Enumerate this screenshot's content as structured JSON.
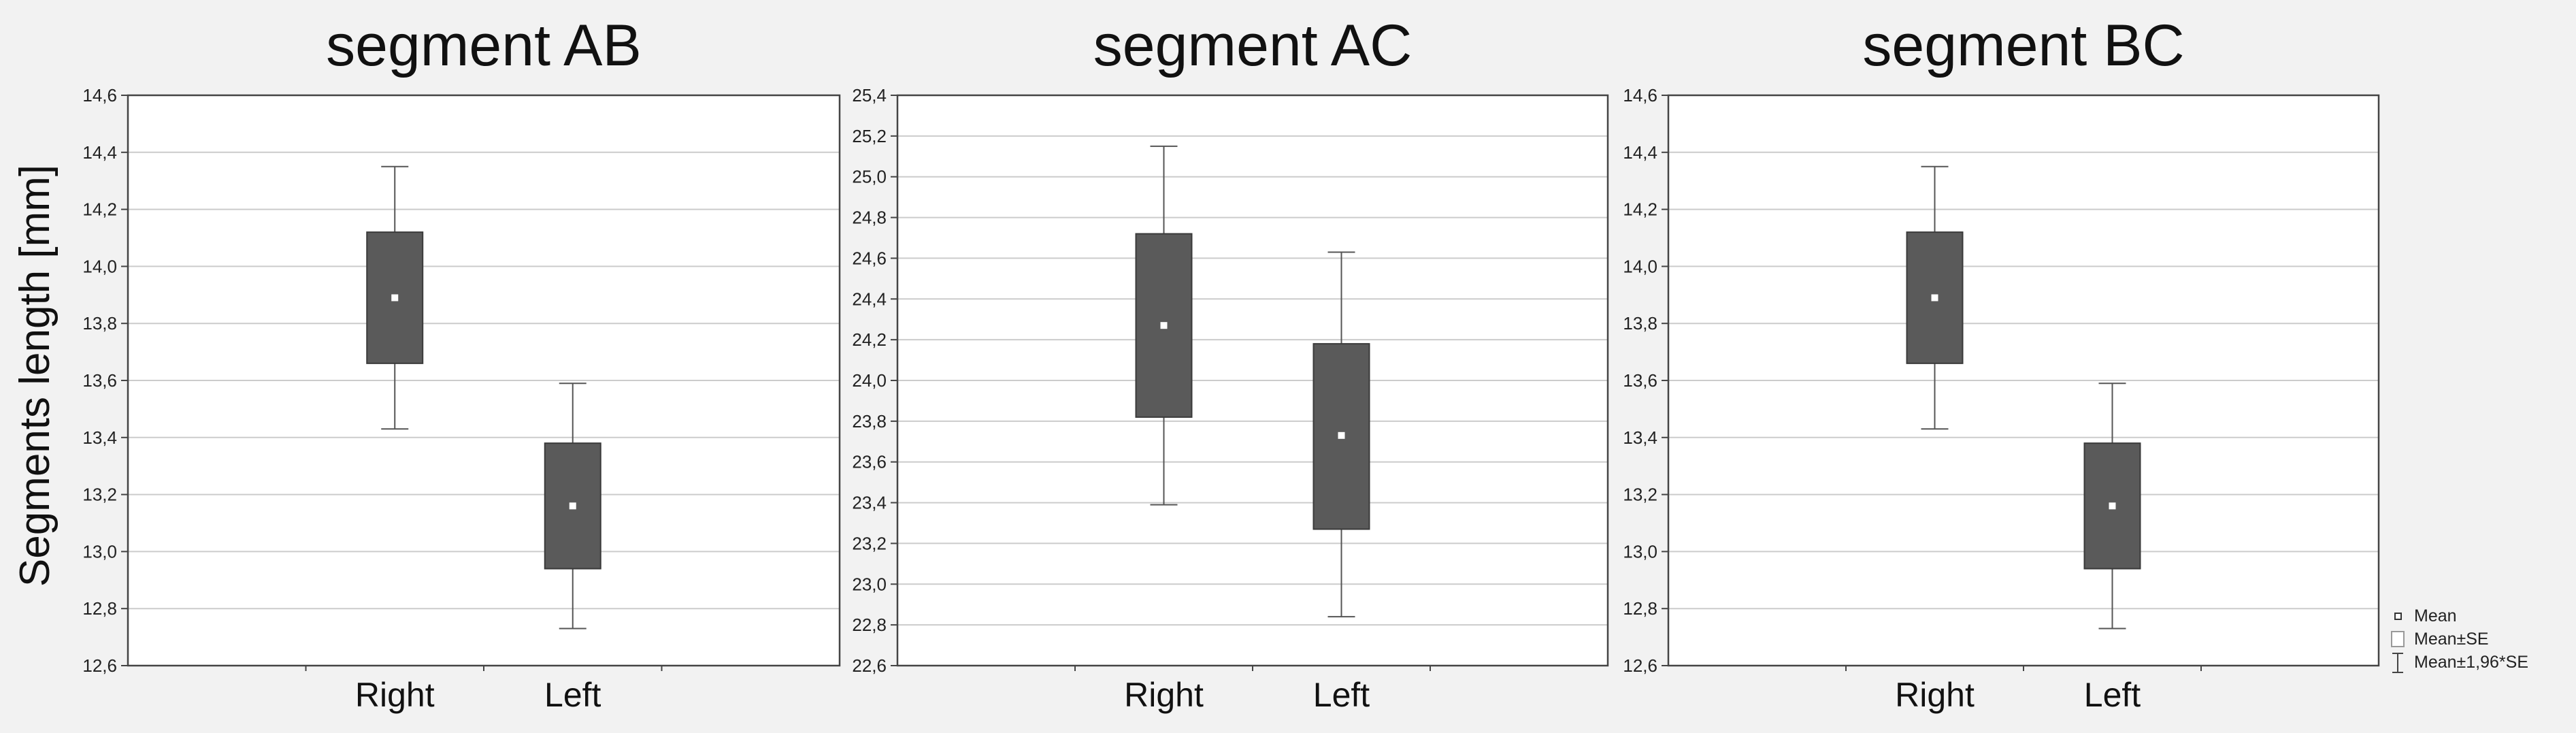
{
  "ylabel": "Segments length [mm]",
  "colors": {
    "box": "#5a5a5a",
    "grid": "#cccccc",
    "whisker": "#555555",
    "mean": "#ffffff",
    "frame": "#444444"
  },
  "legend": {
    "items": [
      {
        "symbol": "mean-marker-icon",
        "label": "Mean"
      },
      {
        "symbol": "se-box-icon",
        "label": "Mean±SE"
      },
      {
        "symbol": "ci-whisker-icon",
        "label": "Mean±1,96*SE"
      }
    ]
  },
  "chart_data": [
    {
      "type": "box",
      "title": "segment AB",
      "categories": [
        "Right",
        "Left"
      ],
      "mean": [
        13.89,
        13.16
      ],
      "se_low": [
        13.66,
        12.94
      ],
      "se_high": [
        14.12,
        13.38
      ],
      "ci_low": [
        13.43,
        12.73
      ],
      "ci_high": [
        14.35,
        13.59
      ],
      "ylim": [
        12.6,
        14.6
      ],
      "yticks": [
        "12,6",
        "12,8",
        "13,0",
        "13,2",
        "13,4",
        "13,6",
        "13,8",
        "14,0",
        "14,2",
        "14,4",
        "14,6"
      ],
      "grid": true
    },
    {
      "type": "box",
      "title": "segment AC",
      "categories": [
        "Right",
        "Left"
      ],
      "mean": [
        24.27,
        23.73
      ],
      "se_low": [
        23.82,
        23.27
      ],
      "se_high": [
        24.72,
        24.18
      ],
      "ci_low": [
        23.39,
        22.84
      ],
      "ci_high": [
        25.15,
        24.63
      ],
      "ylim": [
        22.6,
        25.4
      ],
      "yticks": [
        "22,6",
        "22,8",
        "23,0",
        "23,2",
        "23,4",
        "23,6",
        "23,8",
        "24,0",
        "24,2",
        "24,4",
        "24,6",
        "24,8",
        "25,0",
        "25,2",
        "25,4"
      ],
      "grid": true
    },
    {
      "type": "box",
      "title": "segment BC",
      "categories": [
        "Right",
        "Left"
      ],
      "mean": [
        13.89,
        13.16
      ],
      "se_low": [
        13.66,
        12.94
      ],
      "se_high": [
        14.12,
        13.38
      ],
      "ci_low": [
        13.43,
        12.73
      ],
      "ci_high": [
        14.35,
        13.59
      ],
      "ylim": [
        12.6,
        14.6
      ],
      "yticks": [
        "12,6",
        "12,8",
        "13,0",
        "13,2",
        "13,4",
        "13,6",
        "13,8",
        "14,0",
        "14,2",
        "14,4",
        "14,6"
      ],
      "grid": true
    }
  ]
}
